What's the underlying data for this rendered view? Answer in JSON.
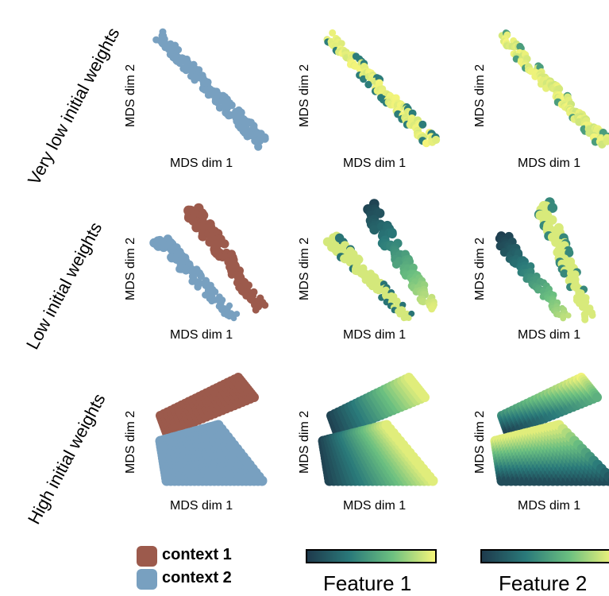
{
  "chart_data": {
    "type": "scatter",
    "rows": [
      {
        "label": "Very low initial weights",
        "geometry": "collapsed-diagonal"
      },
      {
        "label": "Low initial weights",
        "geometry": "two-parallel-bands"
      },
      {
        "label": "High initial weights",
        "geometry": "two-sheets"
      }
    ],
    "columns": [
      {
        "color_by": "context"
      },
      {
        "color_by": "Feature 1"
      },
      {
        "color_by": "Feature 2"
      }
    ],
    "xlabel": "MDS dim 1",
    "ylabel": "MDS dim 2",
    "legend": [
      {
        "name": "context 1",
        "color": "#9c5a4c"
      },
      {
        "name": "context 2",
        "color": "#78a0c0"
      }
    ],
    "colorbars": [
      {
        "label": "Feature 1",
        "colormap": "viridis-like",
        "colors": [
          "#1e3a4c",
          "#2a7a7a",
          "#6cc080",
          "#f5f57a"
        ]
      },
      {
        "label": "Feature 2",
        "colormap": "viridis-like",
        "colors": [
          "#1e3a4c",
          "#2a7a7a",
          "#6cc080",
          "#f5f57a"
        ]
      }
    ],
    "grid": false
  }
}
